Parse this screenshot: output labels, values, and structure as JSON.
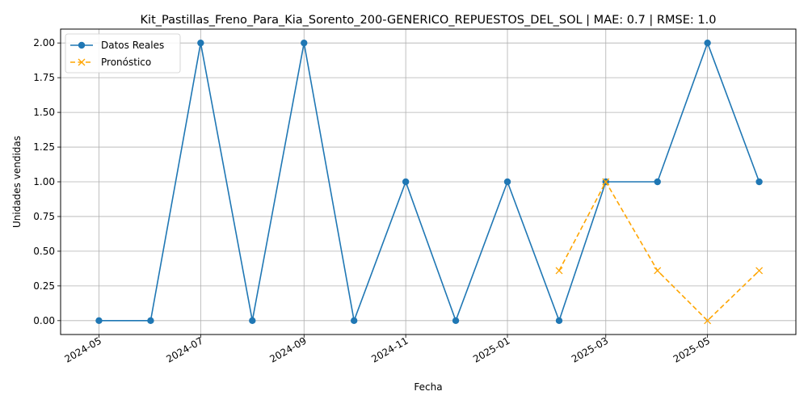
{
  "chart_data": {
    "type": "line",
    "title": "Kit_Pastillas_Freno_Para_Kia_Sorento_200-GENERICO_REPUESTOS_DEL_SOL | MAE: 0.7 | RMSE: 1.0",
    "xlabel": "Fecha",
    "ylabel": "Unidades vendidas",
    "x_tick_labels": [
      "2024-05",
      "2024-07",
      "2024-09",
      "2024-11",
      "2025-01",
      "2025-03",
      "2025-05"
    ],
    "y_tick_labels": [
      "0.00",
      "0.25",
      "0.50",
      "0.75",
      "1.00",
      "1.25",
      "1.50",
      "1.75",
      "2.00"
    ],
    "ylim": [
      -0.1,
      2.1
    ],
    "xlim": [
      "2024-04-08",
      "2025-06-23"
    ],
    "grid": true,
    "legend_position": "upper-left",
    "series": [
      {
        "name": "Datos Reales",
        "color": "#1f77b4",
        "line_style": "solid",
        "marker": "circle",
        "x": [
          "2024-05-01",
          "2024-06-01",
          "2024-07-01",
          "2024-08-01",
          "2024-09-01",
          "2024-10-01",
          "2024-11-01",
          "2024-12-01",
          "2025-01-01",
          "2025-02-01",
          "2025-03-01",
          "2025-04-01",
          "2025-05-01",
          "2025-06-01"
        ],
        "values": [
          0,
          0,
          2,
          0,
          2,
          0,
          1,
          0,
          1,
          0,
          1,
          1,
          2,
          1
        ]
      },
      {
        "name": "Pronóstico",
        "color": "#ffa500",
        "line_style": "dashed",
        "marker": "x",
        "x": [
          "2025-02-01",
          "2025-03-01",
          "2025-04-01",
          "2025-05-01",
          "2025-06-01"
        ],
        "values": [
          0.36,
          1.0,
          0.36,
          0.0,
          0.36
        ]
      }
    ]
  }
}
